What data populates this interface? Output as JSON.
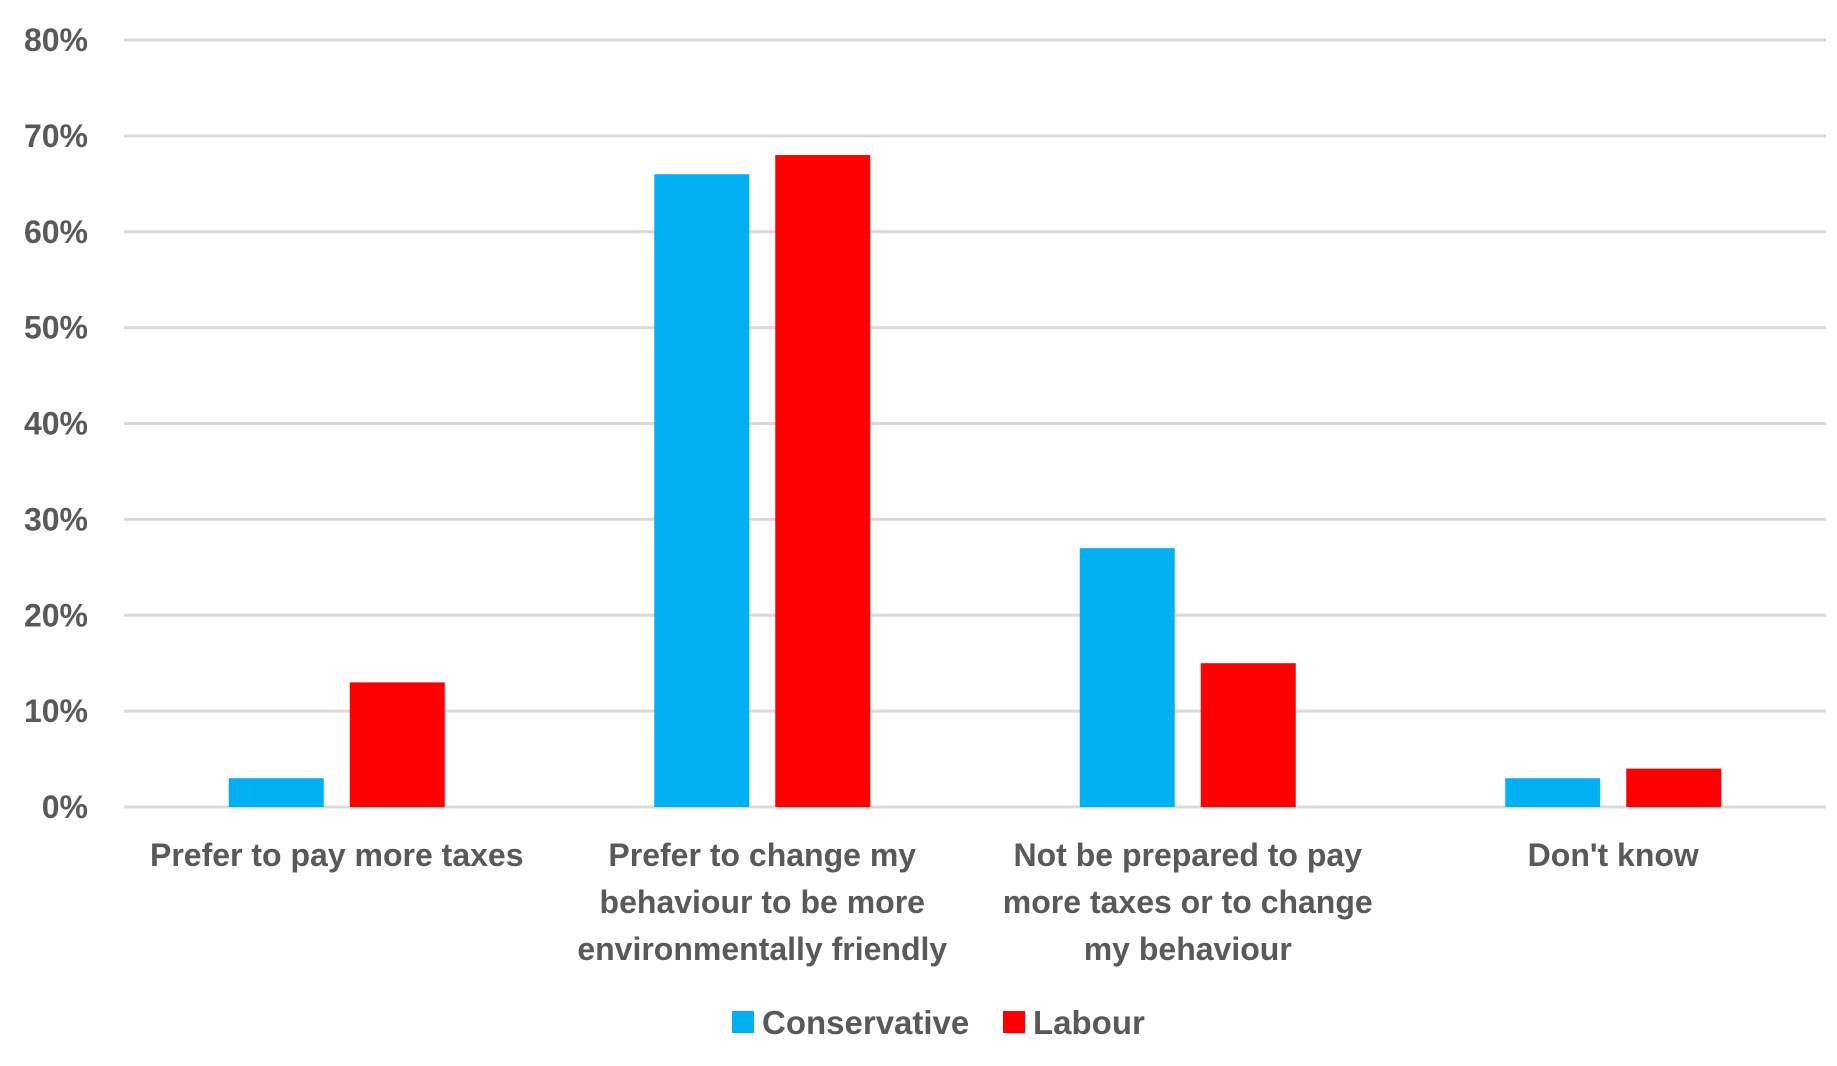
{
  "chart_data": {
    "type": "bar",
    "title": "",
    "xlabel": "",
    "ylabel": "",
    "categories": [
      [
        "Prefer to pay more taxes"
      ],
      [
        "Prefer to change my",
        "behaviour to be more",
        "environmentally friendly"
      ],
      [
        "Not be prepared to pay",
        "more taxes or to change",
        "my behaviour"
      ],
      [
        "Don't know"
      ]
    ],
    "series": [
      {
        "name": "Conservative",
        "color": "#00b0f0",
        "values": [
          3,
          66,
          27,
          3
        ]
      },
      {
        "name": "Labour",
        "color": "#ff0000",
        "values": [
          13,
          68,
          15,
          4
        ]
      }
    ],
    "ylim": [
      0,
      80
    ],
    "yticks": [
      0,
      10,
      20,
      30,
      40,
      50,
      60,
      70,
      80
    ],
    "ytick_labels": [
      "0%",
      "10%",
      "20%",
      "30%",
      "40%",
      "50%",
      "60%",
      "70%",
      "80%"
    ],
    "grid": true,
    "legend_position": "bottom-center"
  }
}
